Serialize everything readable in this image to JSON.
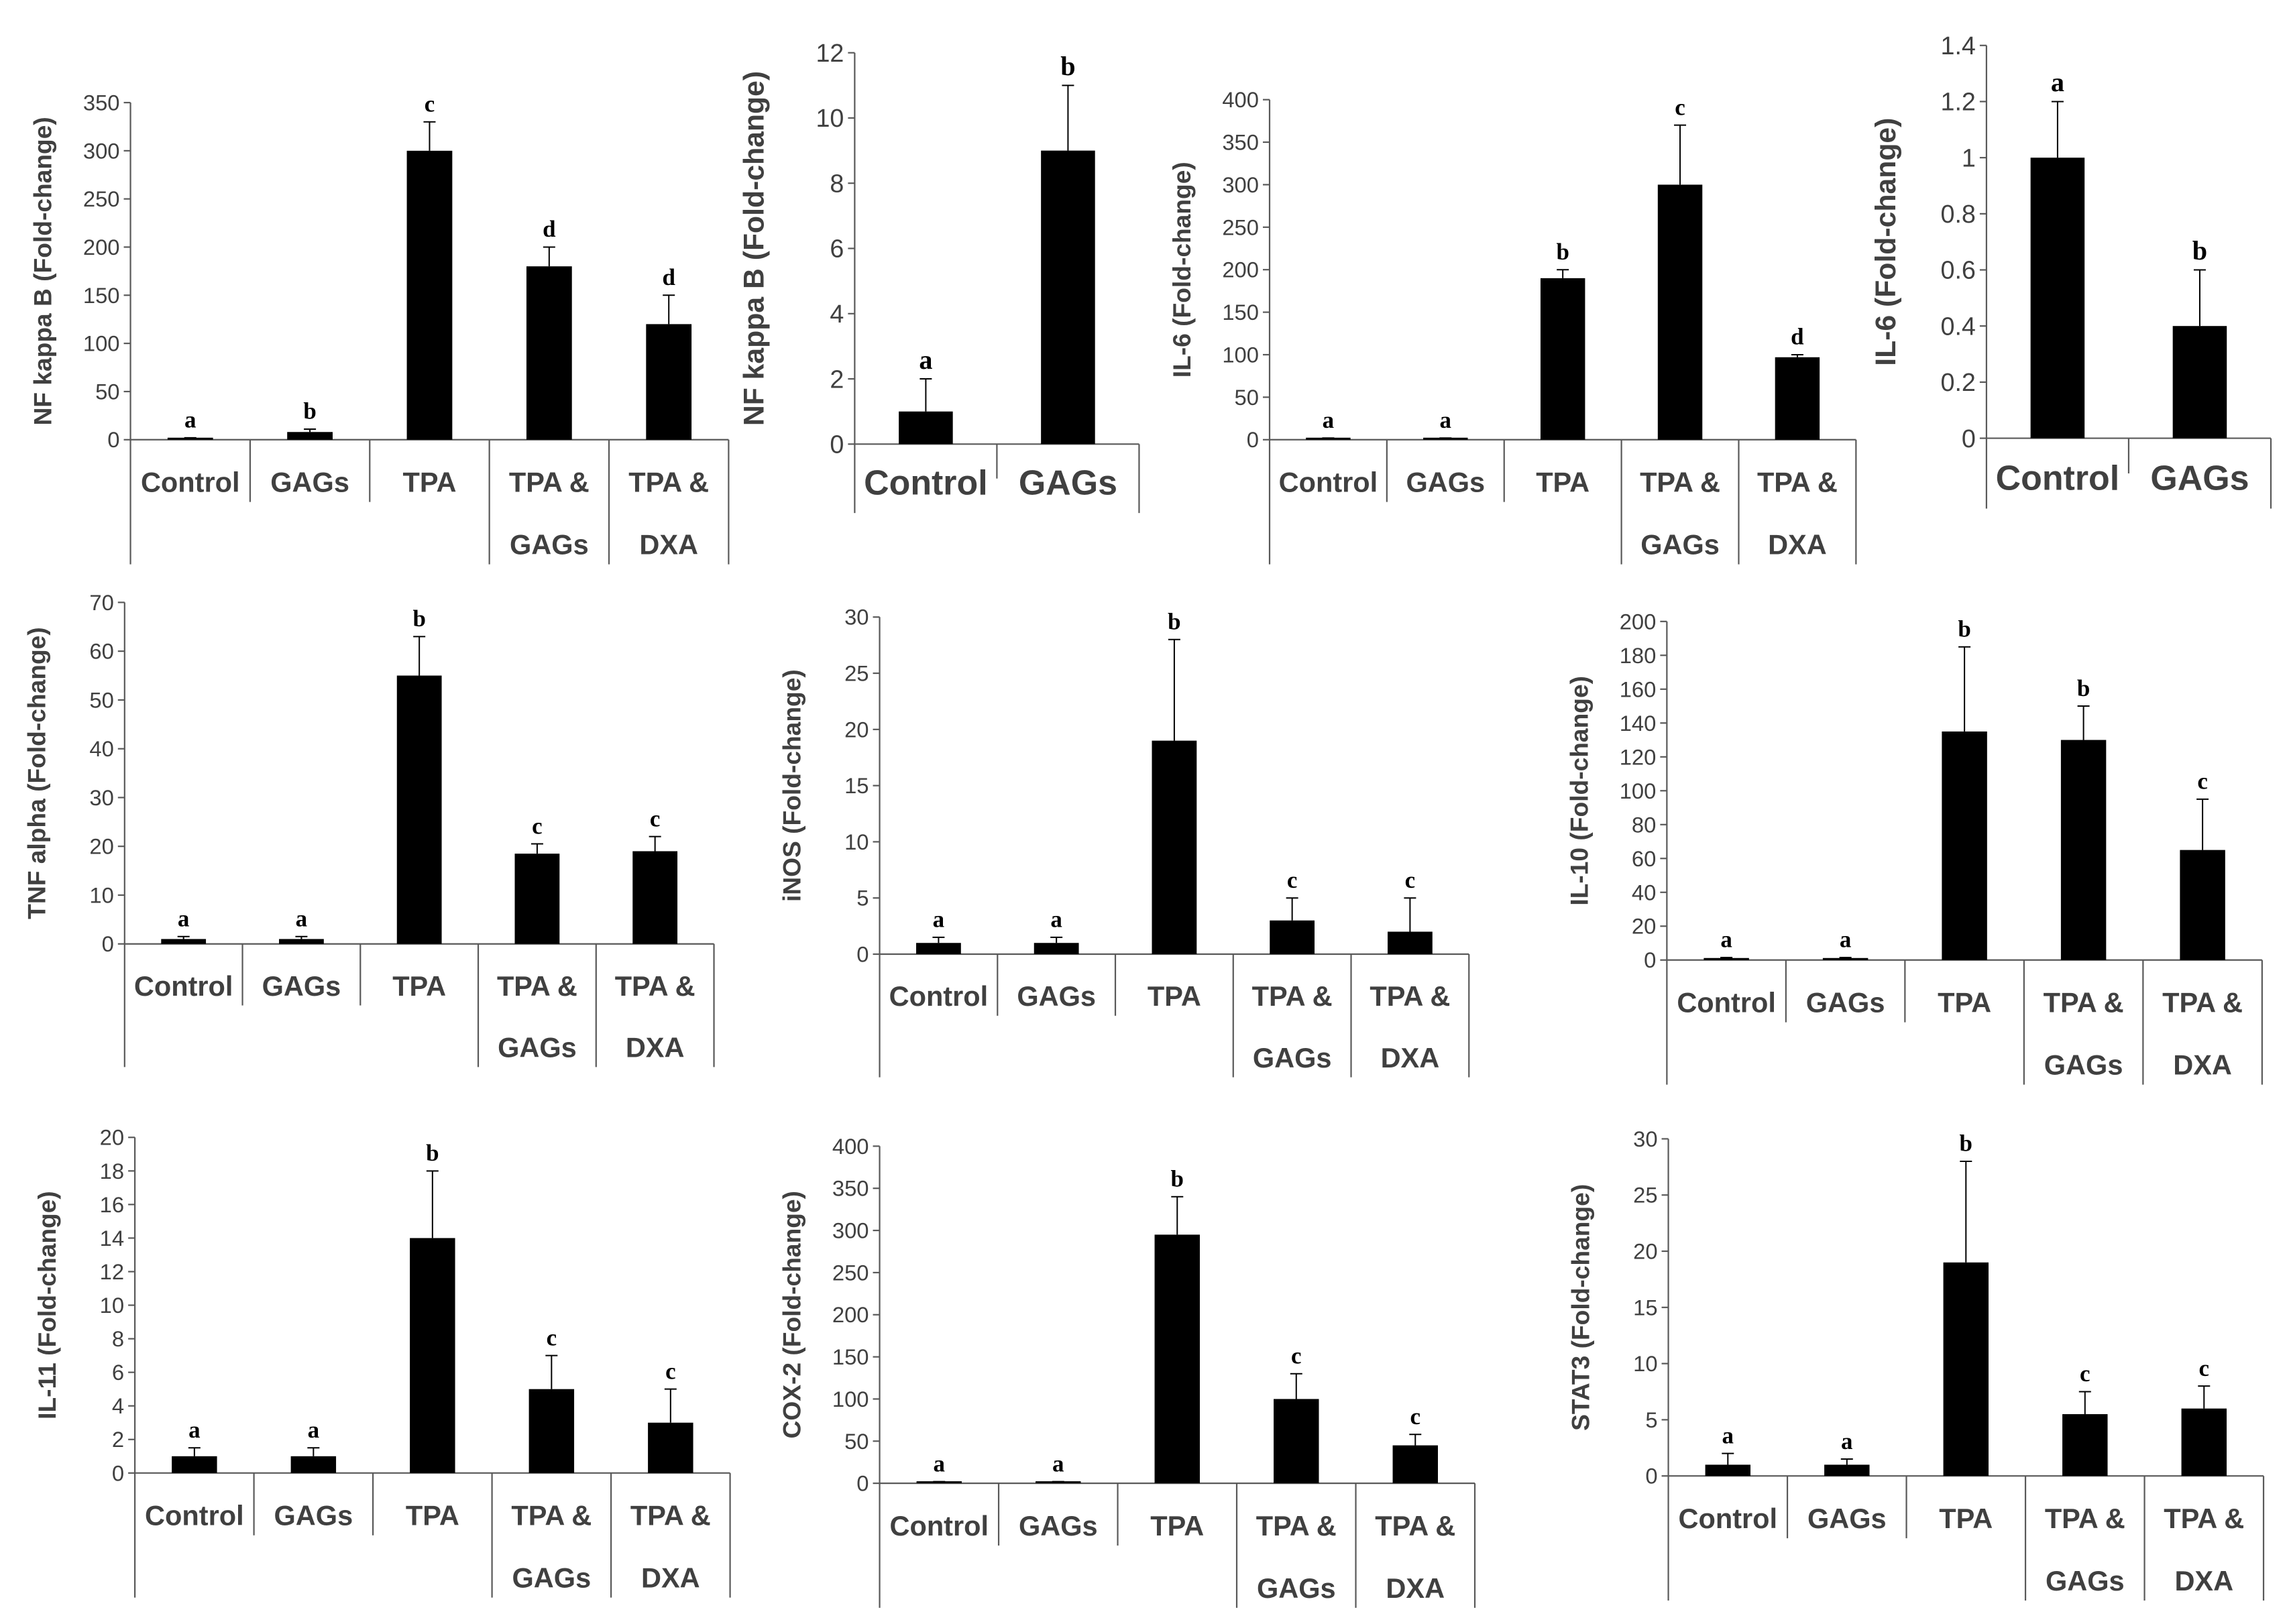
{
  "chart_data": [
    {
      "type": "bar",
      "ylabel": "NF kappa B  (Fold-change)",
      "ylim": [
        0,
        350
      ],
      "yticks": [
        "0",
        "50",
        "100",
        "150",
        "200",
        "250",
        "300",
        "350"
      ],
      "categories": [
        [
          "Control"
        ],
        [
          "GAGs"
        ],
        [
          "TPA"
        ],
        [
          "TPA &",
          "GAGs"
        ],
        [
          "TPA &",
          "DXA"
        ]
      ],
      "values": [
        1,
        8,
        300,
        180,
        120
      ],
      "errors": [
        1,
        3,
        30,
        20,
        30
      ],
      "letters": [
        "a",
        "b",
        "c",
        "d",
        "d"
      ]
    },
    {
      "type": "bar",
      "ylabel": "NF kappa B  (Fold-change)",
      "ylim": [
        0,
        12
      ],
      "yticks": [
        "0",
        "2",
        "4",
        "6",
        "8",
        "10",
        "12"
      ],
      "categories": [
        [
          "Control"
        ],
        [
          "GAGs"
        ]
      ],
      "values": [
        1,
        9
      ],
      "errors": [
        1,
        2
      ],
      "letters": [
        "a",
        "b"
      ]
    },
    {
      "type": "bar",
      "ylabel": "IL-6  (Fold-change)",
      "ylim": [
        0,
        400
      ],
      "yticks": [
        "0",
        "50",
        "100",
        "150",
        "200",
        "250",
        "300",
        "350",
        "400"
      ],
      "categories": [
        [
          "Control"
        ],
        [
          "GAGs"
        ],
        [
          "TPA"
        ],
        [
          "TPA &",
          "GAGs"
        ],
        [
          "TPA &",
          "DXA"
        ]
      ],
      "values": [
        1,
        1,
        190,
        300,
        97
      ],
      "errors": [
        1,
        1,
        10,
        70,
        3
      ],
      "letters": [
        "a",
        "a",
        "b",
        "c",
        "d"
      ]
    },
    {
      "type": "bar",
      "ylabel": "IL-6  (Fold-change)",
      "ylim": [
        0,
        1.4
      ],
      "yticks": [
        "0",
        "0.2",
        "0.4",
        "0.6",
        "0.8",
        "1",
        "1.2",
        "1.4"
      ],
      "categories": [
        [
          "Control"
        ],
        [
          "GAGs"
        ]
      ],
      "values": [
        1,
        0.4
      ],
      "errors": [
        0.2,
        0.2
      ],
      "letters": [
        "a",
        "b"
      ]
    },
    {
      "type": "bar",
      "ylabel": "TNF alpha  (Fold-change)",
      "ylim": [
        0,
        70
      ],
      "yticks": [
        "0",
        "10",
        "20",
        "30",
        "40",
        "50",
        "60",
        "70"
      ],
      "categories": [
        [
          "Control"
        ],
        [
          "GAGs"
        ],
        [
          "TPA"
        ],
        [
          "TPA &",
          "GAGs"
        ],
        [
          "TPA &",
          "DXA"
        ]
      ],
      "values": [
        1,
        1,
        55,
        18.5,
        19
      ],
      "errors": [
        0.5,
        0.5,
        8,
        2,
        3
      ],
      "letters": [
        "a",
        "a",
        "b",
        "c",
        "c"
      ]
    },
    {
      "type": "bar",
      "ylabel": "iNOS  (Fold-change)",
      "ylim": [
        0,
        30
      ],
      "yticks": [
        "0",
        "5",
        "10",
        "15",
        "20",
        "25",
        "30"
      ],
      "categories": [
        [
          "Control"
        ],
        [
          "GAGs"
        ],
        [
          "TPA"
        ],
        [
          "TPA &",
          "GAGs"
        ],
        [
          "TPA &",
          "DXA"
        ]
      ],
      "values": [
        1,
        1,
        19,
        3,
        2
      ],
      "errors": [
        0.5,
        0.5,
        9,
        2,
        3
      ],
      "letters": [
        "a",
        "a",
        "b",
        "c",
        "c"
      ]
    },
    {
      "type": "bar",
      "ylabel": "IL-10  (Fold-change)",
      "ylim": [
        0,
        200
      ],
      "yticks": [
        "0",
        "20",
        "40",
        "60",
        "80",
        "100",
        "120",
        "140",
        "160",
        "180",
        "200"
      ],
      "categories": [
        [
          "Control"
        ],
        [
          "GAGs"
        ],
        [
          "TPA"
        ],
        [
          "TPA &",
          "GAGs"
        ],
        [
          "TPA &",
          "DXA"
        ]
      ],
      "values": [
        1,
        1,
        135,
        130,
        65
      ],
      "errors": [
        0.5,
        0.5,
        50,
        20,
        30
      ],
      "letters": [
        "a",
        "a",
        "b",
        "b",
        "c"
      ]
    },
    {
      "type": "bar",
      "ylabel": "IL-11  (Fold-change)",
      "ylim": [
        0,
        20
      ],
      "yticks": [
        "0",
        "2",
        "4",
        "6",
        "8",
        "10",
        "12",
        "14",
        "16",
        "18",
        "20"
      ],
      "categories": [
        [
          "Control"
        ],
        [
          "GAGs"
        ],
        [
          "TPA"
        ],
        [
          "TPA &",
          "GAGs"
        ],
        [
          "TPA &",
          "DXA"
        ]
      ],
      "values": [
        1,
        1,
        14,
        5,
        3
      ],
      "errors": [
        0.5,
        0.5,
        4,
        2,
        2
      ],
      "letters": [
        "a",
        "a",
        "b",
        "c",
        "c"
      ]
    },
    {
      "type": "bar",
      "ylabel": "COX-2  (Fold-change)",
      "ylim": [
        0,
        400
      ],
      "yticks": [
        "0",
        "50",
        "100",
        "150",
        "200",
        "250",
        "300",
        "350",
        "400"
      ],
      "categories": [
        [
          "Control"
        ],
        [
          "GAGs"
        ],
        [
          "TPA"
        ],
        [
          "TPA &",
          "GAGs"
        ],
        [
          "TPA &",
          "DXA"
        ]
      ],
      "values": [
        1,
        1,
        295,
        100,
        45
      ],
      "errors": [
        1,
        1,
        45,
        30,
        13
      ],
      "letters": [
        "a",
        "a",
        "b",
        "c",
        "c"
      ]
    },
    {
      "type": "bar",
      "ylabel": "STAT3  (Fold-change)",
      "ylim": [
        0,
        30
      ],
      "yticks": [
        "0",
        "5",
        "10",
        "15",
        "20",
        "25",
        "30"
      ],
      "categories": [
        [
          "Control"
        ],
        [
          "GAGs"
        ],
        [
          "TPA"
        ],
        [
          "TPA &",
          "GAGs"
        ],
        [
          "TPA &",
          "DXA"
        ]
      ],
      "values": [
        1,
        1,
        19,
        5.5,
        6
      ],
      "errors": [
        1,
        0.5,
        9,
        2,
        2
      ],
      "letters": [
        "a",
        "a",
        "b",
        "c",
        "c"
      ]
    }
  ]
}
